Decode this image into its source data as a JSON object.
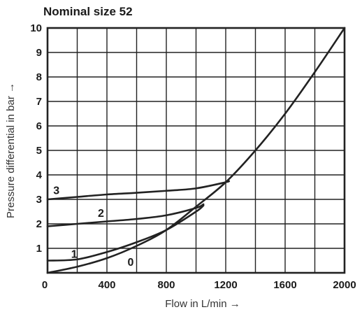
{
  "chart_data": {
    "type": "line",
    "title": "Nominal size 52",
    "xlabel": "Flow in L/min →",
    "ylabel": "Pressure differential in bar →",
    "xlim": [
      0,
      2000
    ],
    "ylim": [
      0,
      10
    ],
    "x_ticks": [
      0,
      200,
      400,
      600,
      800,
      1000,
      1200,
      1400,
      1600,
      1800,
      2000
    ],
    "x_tick_labels": [
      "0",
      "400",
      "800",
      "1200",
      "1600",
      "2000"
    ],
    "x_tick_label_values": [
      0,
      400,
      800,
      1200,
      1600,
      2000
    ],
    "y_ticks": [
      0,
      1,
      2,
      3,
      4,
      5,
      6,
      7,
      8,
      9,
      10
    ],
    "y_tick_labels": [
      "1",
      "2",
      "3",
      "4",
      "5",
      "6",
      "7",
      "8",
      "9",
      "10"
    ],
    "y_tick_label_values": [
      1,
      2,
      3,
      4,
      5,
      6,
      7,
      8,
      9,
      10
    ],
    "grid": true,
    "series": [
      {
        "name": "0",
        "color": "#222222",
        "x": [
          0,
          200,
          400,
          600,
          800,
          1000,
          1200,
          1400,
          1600,
          1800,
          2000
        ],
        "y": [
          0.0,
          0.25,
          0.6,
          1.1,
          1.75,
          2.7,
          3.7,
          5.0,
          6.5,
          8.2,
          10.0
        ]
      },
      {
        "name": "1",
        "color": "#222222",
        "x": [
          0,
          200,
          400,
          600,
          800,
          1000,
          1050
        ],
        "y": [
          0.5,
          0.55,
          0.85,
          1.25,
          1.75,
          2.5,
          2.75
        ]
      },
      {
        "name": "2",
        "color": "#222222",
        "x": [
          0,
          200,
          400,
          600,
          800,
          1000,
          1050
        ],
        "y": [
          1.9,
          2.0,
          2.1,
          2.2,
          2.35,
          2.65,
          2.8
        ]
      },
      {
        "name": "3",
        "color": "#222222",
        "x": [
          0,
          200,
          400,
          600,
          800,
          1000,
          1200,
          1220
        ],
        "y": [
          3.0,
          3.1,
          3.2,
          3.27,
          3.35,
          3.45,
          3.7,
          3.75
        ]
      }
    ],
    "curve_labels": [
      {
        "text": "3",
        "x": 60,
        "y": 3.22
      },
      {
        "text": "2",
        "x": 360,
        "y": 2.28
      },
      {
        "text": "1",
        "x": 180,
        "y": 0.62
      },
      {
        "text": "0",
        "x": 560,
        "y": 0.28
      }
    ]
  }
}
